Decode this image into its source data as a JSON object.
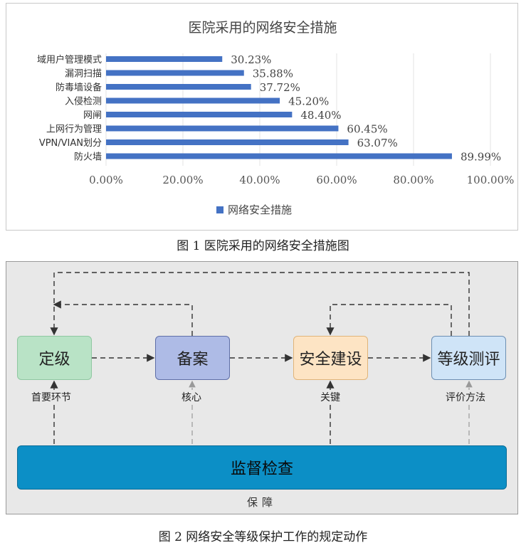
{
  "figure1": {
    "caption": "图 1  医院采用的网络安全措施图",
    "chart_data": {
      "type": "bar",
      "orientation": "horizontal",
      "title": "医院采用的网络安全措施",
      "categories": [
        "域用户管理模式",
        "漏洞扫描",
        "防毒墙设备",
        "入侵检测",
        "网闸",
        "上网行为管理",
        "VPN/VIAN划分",
        "防火墙"
      ],
      "series": [
        {
          "name": "网络安全措施",
          "values": [
            30.23,
            35.88,
            37.72,
            45.2,
            48.4,
            60.45,
            63.07,
            89.99
          ]
        }
      ],
      "data_labels": [
        "30.23%",
        "35.88%",
        "37.72%",
        "45.20%",
        "48.40%",
        "60.45%",
        "63.07%",
        "89.99%"
      ],
      "xlim": [
        0,
        100
      ],
      "x_ticks": [
        "0.00%",
        "20.00%",
        "40.00%",
        "60.00%",
        "80.00%",
        "100.00%"
      ],
      "grid": true,
      "legend_position": "bottom",
      "bar_color": "#4472c4"
    }
  },
  "figure2": {
    "caption": "图 2 网络安全等级保护工作的规定动作",
    "boxes": {
      "dingji": "定级",
      "beian": "备案",
      "jianshe": "安全建设",
      "cepin": "等级测评",
      "jiancha": "监督检查"
    },
    "sublabels": {
      "dingji": "首要环节",
      "beian": "核心",
      "jianshe": "关键",
      "cepin": "评价方法"
    },
    "bottom_label": "保障"
  }
}
